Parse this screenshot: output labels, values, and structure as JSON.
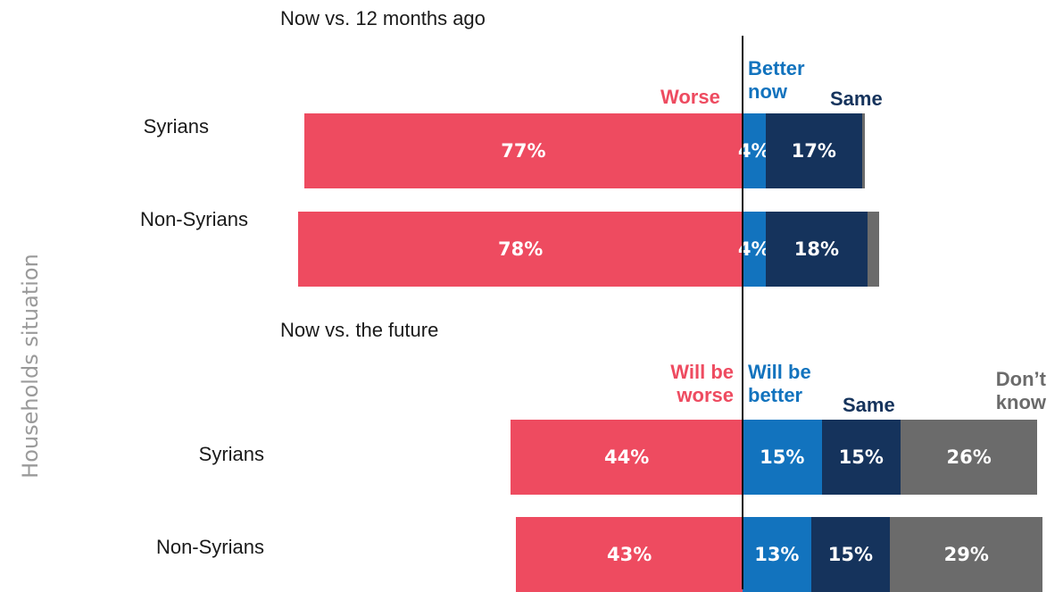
{
  "y_axis_title": "Households situation",
  "colors": {
    "worse": "#ee4b60",
    "better": "#1273be",
    "same": "#15335c",
    "dont_know": "#6b6b6b"
  },
  "chart_data": [
    {
      "type": "bar",
      "orientation": "horizontal-diverging",
      "title": "Now vs. 12 months ago",
      "legend": [
        "Worse",
        "Better now",
        "Same"
      ],
      "categories": [
        "Syrians",
        "Non-Syrians"
      ],
      "series": [
        {
          "name": "Worse",
          "values": [
            77,
            78
          ],
          "labels": [
            "77%",
            "78%"
          ]
        },
        {
          "name": "Better now",
          "values": [
            4,
            4
          ],
          "labels": [
            "4%",
            "4%"
          ]
        },
        {
          "name": "Same",
          "values": [
            17,
            18
          ],
          "labels": [
            "17%",
            "18%"
          ]
        },
        {
          "name": "",
          "values": [
            0.5,
            2
          ],
          "labels": [
            "",
            ""
          ]
        }
      ]
    },
    {
      "type": "bar",
      "orientation": "horizontal-diverging",
      "title": "Now vs. the future",
      "legend": [
        "Will be worse",
        "Will be better",
        "Same",
        "Don’t know"
      ],
      "categories": [
        "Syrians",
        "Non-Syrians"
      ],
      "series": [
        {
          "name": "Will be worse",
          "values": [
            44,
            43
          ],
          "labels": [
            "44%",
            "43%"
          ]
        },
        {
          "name": "Will be better",
          "values": [
            15,
            13
          ],
          "labels": [
            "15%",
            "13%"
          ]
        },
        {
          "name": "Same",
          "values": [
            15,
            15
          ],
          "labels": [
            "15%",
            "15%"
          ]
        },
        {
          "name": "Don’t know",
          "values": [
            26,
            29
          ],
          "labels": [
            "26%",
            "29%"
          ]
        }
      ]
    }
  ]
}
